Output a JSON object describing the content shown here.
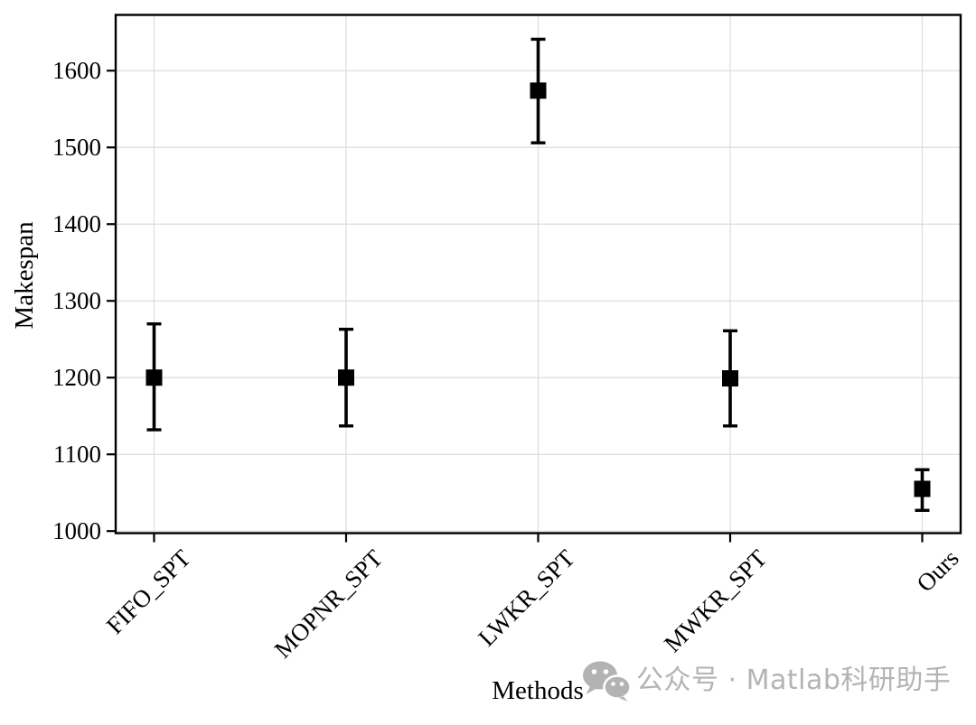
{
  "figure": {
    "background": "#ffffff",
    "axis_color": "#000000",
    "watermark": {
      "icon": "wechat-icon",
      "text": "公众号 · Matlab科研助手",
      "color": "#b3b3b3"
    }
  },
  "chart_data": {
    "type": "scatter",
    "subtype": "errorbar",
    "title": "",
    "xlabel": "Methods",
    "ylabel": "Makespan",
    "categories": [
      "FIFO_SPT",
      "MOPNR_SPT",
      "LWKR_SPT",
      "MWKR_SPT",
      "Ours"
    ],
    "series": [
      {
        "name": "Makespan",
        "marker": "square",
        "marker_size": 18,
        "color": "#000000",
        "means": [
          1200,
          1200,
          1574,
          1199,
          1055
        ],
        "upper": [
          1270,
          1263,
          1641,
          1261,
          1080
        ],
        "lower": [
          1132,
          1137,
          1506,
          1137,
          1027
        ]
      }
    ],
    "yticks": [
      1000,
      1100,
      1200,
      1300,
      1400,
      1500,
      1600
    ],
    "ylim": [
      997.3,
      1672.7
    ],
    "xlim": [
      -0.2,
      4.2
    ],
    "grid": true,
    "grid_color": "#dcdcdc",
    "legend": "none",
    "xtick_rotation": 45
  }
}
